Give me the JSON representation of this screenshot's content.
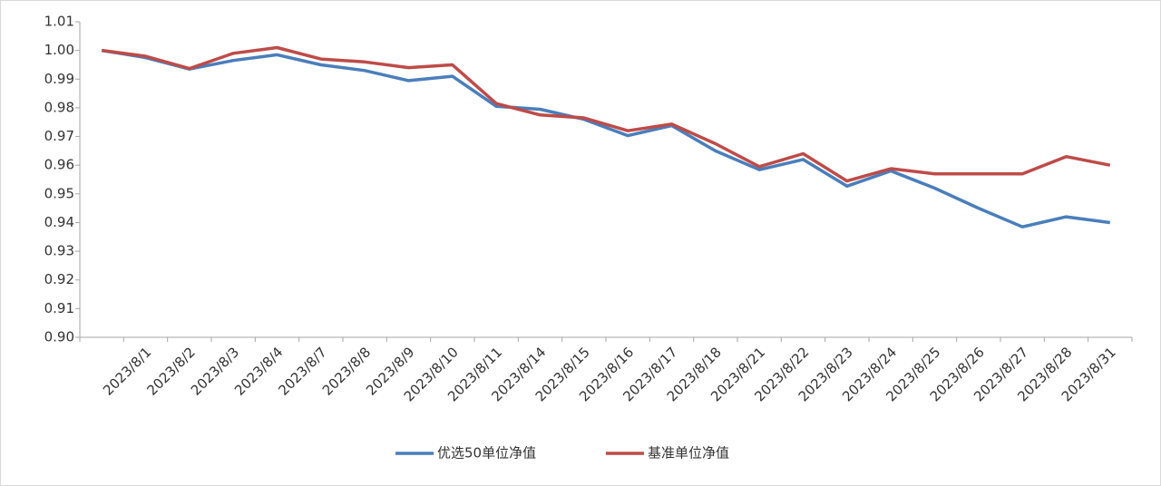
{
  "chart_data": {
    "type": "line",
    "categories": [
      null,
      "2023/8/1",
      "2023/8/2",
      "2023/8/3",
      "2023/8/4",
      "2023/8/7",
      "2023/8/8",
      "2023/8/9",
      "2023/8/10",
      "2023/8/11",
      "2023/8/14",
      "2023/8/15",
      "2023/8/16",
      "2023/8/17",
      "2023/8/18",
      "2023/8/21",
      "2023/8/22",
      "2023/8/23",
      "2023/8/24",
      "2023/8/25",
      "2023/8/26",
      "2023/8/27",
      "2023/8/28",
      "2023/8/31"
    ],
    "series": [
      {
        "name": "优选50单位净值",
        "color": "#4a7ebb",
        "values": [
          1.0,
          0.9975,
          0.9935,
          0.9965,
          0.9985,
          0.995,
          0.993,
          0.9895,
          0.991,
          0.9805,
          0.9795,
          0.976,
          0.9703,
          0.9738,
          0.965,
          0.9584,
          0.962,
          0.9527,
          0.958,
          0.952,
          0.945,
          0.9385,
          0.942,
          0.94
        ]
      },
      {
        "name": "基准单位净值",
        "color": "#be4b48",
        "values": [
          1.0,
          0.998,
          0.9937,
          0.999,
          1.001,
          0.997,
          0.996,
          0.994,
          0.995,
          0.9815,
          0.9775,
          0.9765,
          0.972,
          0.9743,
          0.9675,
          0.9595,
          0.964,
          0.9545,
          0.9588,
          0.957,
          0.957,
          0.957,
          0.963,
          0.96
        ]
      }
    ],
    "ylim": [
      0.9,
      1.01
    ],
    "yticks": [
      {
        "value": 0.9,
        "label": "0.90"
      },
      0.91,
      0.92,
      0.93,
      0.94,
      0.95,
      0.96,
      0.97,
      0.98,
      0.99,
      {
        "value": 1.0,
        "label": "1.00"
      },
      1.01
    ],
    "legend": "bottom"
  }
}
